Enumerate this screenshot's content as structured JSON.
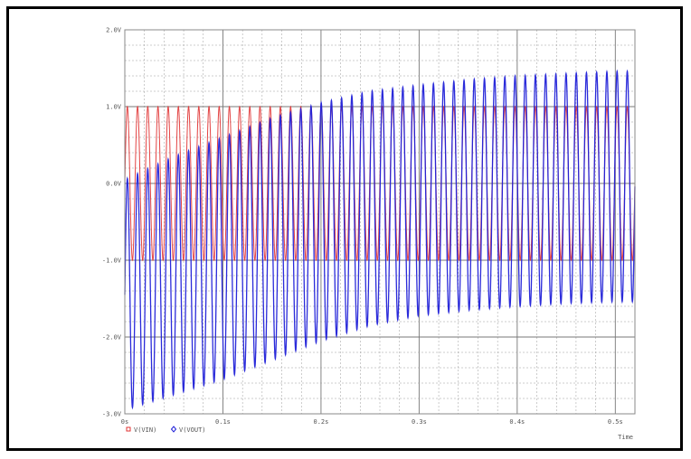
{
  "chart_data": {
    "type": "line",
    "xlabel": "Time",
    "ylabel": "",
    "xlim": [
      0,
      0.52
    ],
    "ylim": [
      -3.0,
      2.0
    ],
    "x_tick_labels": [
      "0s",
      "0.1s",
      "0.2s",
      "0.3s",
      "0.4s",
      "0.5s"
    ],
    "x_ticks": [
      0,
      0.1,
      0.2,
      0.3,
      0.4,
      0.5
    ],
    "y_tick_labels": [
      "2.0V",
      "1.0V",
      "0.0V",
      "-1.0V",
      "-2.0V",
      "-3.0V"
    ],
    "y_ticks": [
      2.0,
      1.0,
      0.0,
      -1.0,
      -2.0,
      -3.0
    ],
    "grid": true,
    "legend_position": "bottom-left",
    "series": [
      {
        "name": "V(VIN)",
        "color": "#e03030",
        "marker": "square",
        "waveform": "sine",
        "offset": 0.0,
        "amplitude": 1.0,
        "cycles": 50
      },
      {
        "name": "V(VOUT)",
        "color": "#2020d8",
        "marker": "diamond",
        "waveform": "sine",
        "cycles": 50,
        "envelope_x": [
          0,
          0.05,
          0.1,
          0.15,
          0.2,
          0.25,
          0.3,
          0.35,
          0.4,
          0.45,
          0.5,
          0.52
        ],
        "envelope_max": [
          0.05,
          0.35,
          0.6,
          0.85,
          1.05,
          1.2,
          1.28,
          1.35,
          1.4,
          1.43,
          1.46,
          1.46
        ],
        "envelope_min": [
          -2.95,
          -2.75,
          -2.55,
          -2.3,
          -2.05,
          -1.85,
          -1.72,
          -1.65,
          -1.6,
          -1.56,
          -1.54,
          -1.54
        ]
      }
    ]
  }
}
